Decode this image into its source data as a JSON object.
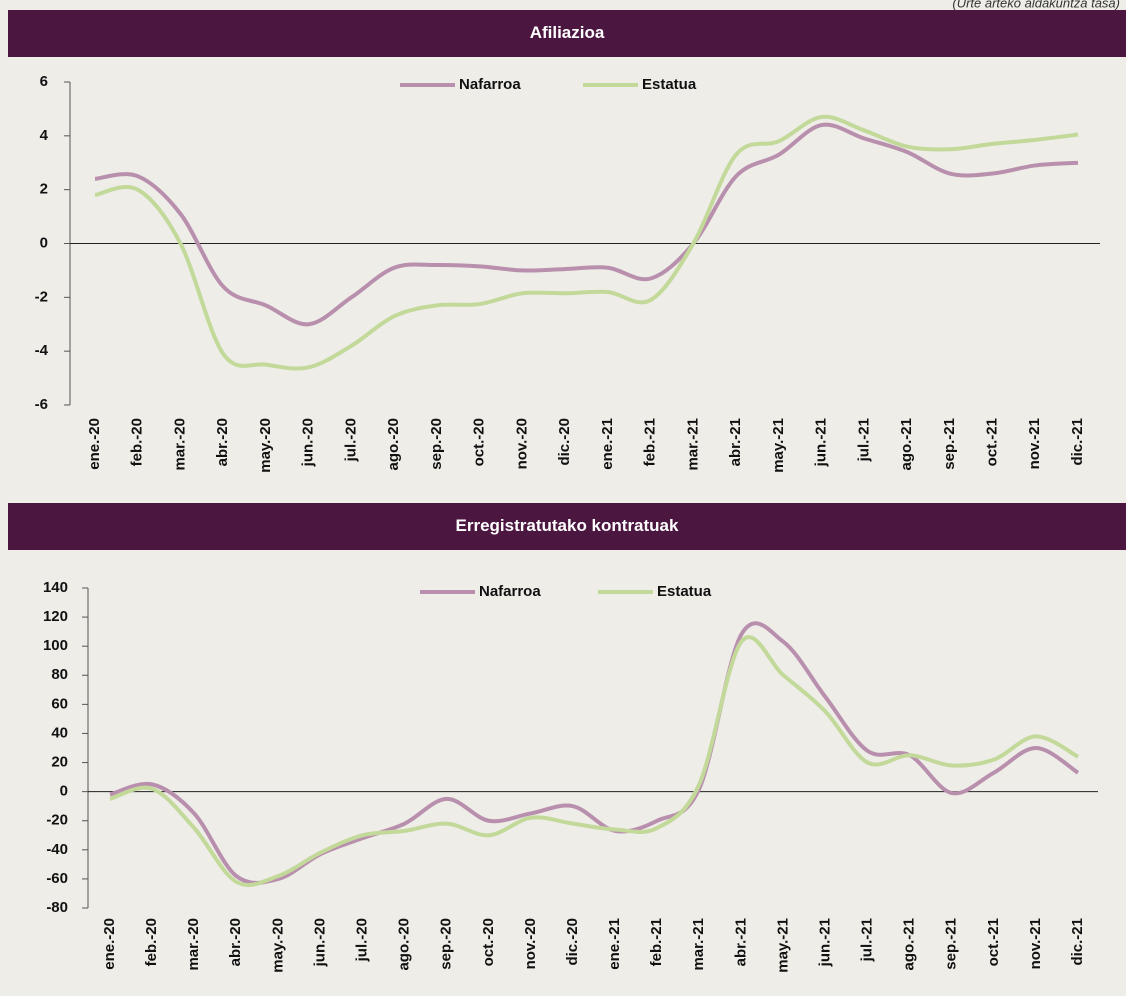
{
  "header": {
    "note": "(Urte arteko aldakuntza tasa)"
  },
  "chart_data": [
    {
      "type": "line",
      "title": "Afiliazioa",
      "categories": [
        "ene.-20",
        "feb.-20",
        "mar.-20",
        "abr.-20",
        "may.-20",
        "jun.-20",
        "jul.-20",
        "ago.-20",
        "sep.-20",
        "oct.-20",
        "nov.-20",
        "dic.-20",
        "ene.-21",
        "feb.-21",
        "mar.-21",
        "abr.-21",
        "may.-21",
        "jun.-21",
        "jul.-21",
        "ago.-21",
        "sep.-21",
        "oct.-21",
        "nov.-21",
        "dic.-21"
      ],
      "series": [
        {
          "name": "Nafarroa",
          "color": "#b98fae",
          "values": [
            2.4,
            2.5,
            1.1,
            -1.6,
            -2.3,
            -3.0,
            -2.0,
            -0.9,
            -0.8,
            -0.85,
            -1.0,
            -0.95,
            -0.9,
            -1.3,
            0.0,
            2.5,
            3.3,
            4.4,
            3.9,
            3.4,
            2.6,
            2.6,
            2.9,
            3.0
          ]
        },
        {
          "name": "Estatua",
          "color": "#c2d99a",
          "values": [
            1.8,
            2.0,
            0.0,
            -4.1,
            -4.5,
            -4.6,
            -3.8,
            -2.7,
            -2.3,
            -2.25,
            -1.85,
            -1.85,
            -1.8,
            -2.1,
            0.0,
            3.3,
            3.8,
            4.7,
            4.2,
            3.6,
            3.5,
            3.7,
            3.85,
            4.05
          ]
        }
      ],
      "ylim": [
        -6,
        6
      ],
      "yticks": [
        -6,
        -4,
        -2,
        0,
        2,
        4,
        6
      ],
      "legend": "top"
    },
    {
      "type": "line",
      "title": "Erregistratutako kontratuak",
      "categories": [
        "ene.-20",
        "feb.-20",
        "mar.-20",
        "abr.-20",
        "may.-20",
        "jun.-20",
        "jul.-20",
        "ago.-20",
        "sep.-20",
        "oct.-20",
        "nov.-20",
        "dic.-20",
        "ene.-21",
        "feb.-21",
        "mar.-21",
        "abr.-21",
        "may.-21",
        "jun.-21",
        "jul.-21",
        "ago.-21",
        "sep.-21",
        "oct.-21",
        "nov.-21",
        "dic.-21"
      ],
      "series": [
        {
          "name": "Nafarroa",
          "color": "#b98fae",
          "values": [
            -2,
            5,
            -15,
            -58,
            -60,
            -43,
            -32,
            -22,
            -5,
            -20,
            -15,
            -10,
            -27,
            -20,
            2,
            108,
            103,
            65,
            28,
            25,
            -1,
            13,
            30,
            13
          ]
        },
        {
          "name": "Estatua",
          "color": "#c2d99a",
          "values": [
            -5,
            2,
            -25,
            -62,
            -58,
            -42,
            -30,
            -27,
            -22,
            -30,
            -18,
            -22,
            -26,
            -25,
            5,
            103,
            80,
            55,
            20,
            25,
            18,
            22,
            38,
            24
          ]
        }
      ],
      "ylim": [
        -80,
        140
      ],
      "yticks": [
        -80,
        -60,
        -40,
        -20,
        0,
        20,
        40,
        60,
        80,
        100,
        120,
        140
      ],
      "legend": "top"
    }
  ]
}
